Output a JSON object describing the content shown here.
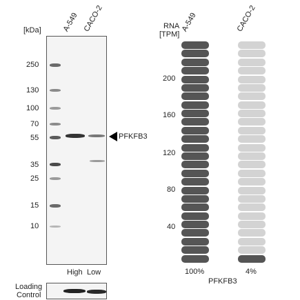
{
  "western_blot": {
    "kda_label": "[kDa]",
    "lanes": [
      "A-549",
      "CACO-2"
    ],
    "markers": [
      "250",
      "130",
      "100",
      "70",
      "55",
      "35",
      "25",
      "15",
      "10"
    ],
    "target_label": "PFKFB3",
    "lane_levels": [
      "High",
      "Low"
    ],
    "loading_control_line1": "Loading",
    "loading_control_line2": "Control"
  },
  "rna_panel": {
    "title_line1": "RNA",
    "title_line2": "[TPM]",
    "cell_lines": [
      "A-549",
      "CACO-2"
    ],
    "y_ticks": [
      "200",
      "160",
      "120",
      "80",
      "40"
    ],
    "percentages": [
      "100%",
      "4%"
    ],
    "gene_label": "PFKFB3",
    "segments_per_column": 26,
    "filled_segments": [
      26,
      1
    ],
    "colors": {
      "filled": "#555555",
      "empty": "#d3d3d3"
    }
  }
}
